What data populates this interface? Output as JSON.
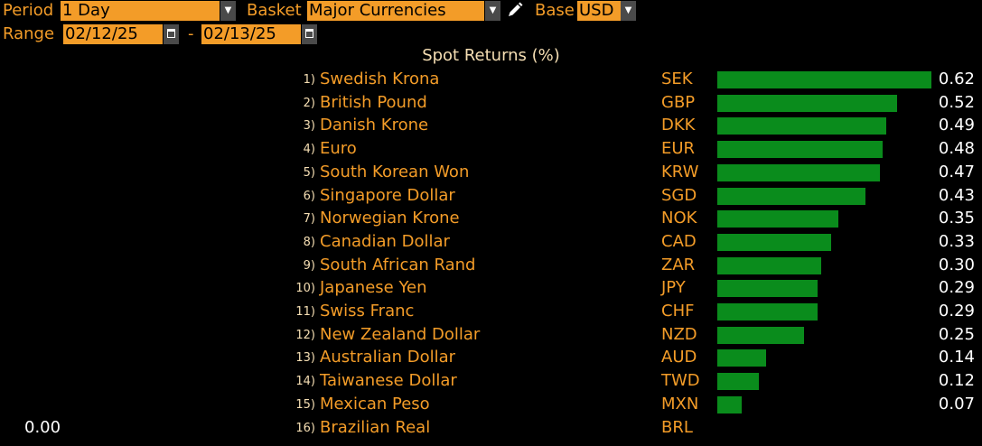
{
  "header": {
    "period_label": "Period",
    "period_value": "1 Day",
    "basket_label": "Basket",
    "basket_value": "Major Currencies",
    "base_label": "Base",
    "base_value": "USD",
    "range_label": "Range",
    "range_start": "02/12/25",
    "range_sep": "-",
    "range_end": "02/13/25"
  },
  "chart_data": {
    "type": "bar",
    "title": "Spot Returns (%)",
    "orientation": "horizontal",
    "bar_color": "#0a8c1c",
    "axis_value_label": "0.00",
    "xlim": [
      0,
      0.62
    ],
    "rows": [
      {
        "rank": "1)",
        "name": "Swedish Krona",
        "code": "SEK",
        "value": 0.62,
        "label": "0.62"
      },
      {
        "rank": "2)",
        "name": "British Pound",
        "code": "GBP",
        "value": 0.52,
        "label": "0.52"
      },
      {
        "rank": "3)",
        "name": "Danish Krone",
        "code": "DKK",
        "value": 0.49,
        "label": "0.49"
      },
      {
        "rank": "4)",
        "name": "Euro",
        "code": "EUR",
        "value": 0.48,
        "label": "0.48"
      },
      {
        "rank": "5)",
        "name": "South Korean Won",
        "code": "KRW",
        "value": 0.47,
        "label": "0.47"
      },
      {
        "rank": "6)",
        "name": "Singapore Dollar",
        "code": "SGD",
        "value": 0.43,
        "label": "0.43"
      },
      {
        "rank": "7)",
        "name": "Norwegian Krone",
        "code": "NOK",
        "value": 0.35,
        "label": "0.35"
      },
      {
        "rank": "8)",
        "name": "Canadian Dollar",
        "code": "CAD",
        "value": 0.33,
        "label": "0.33"
      },
      {
        "rank": "9)",
        "name": "South African Rand",
        "code": "ZAR",
        "value": 0.3,
        "label": "0.30"
      },
      {
        "rank": "10)",
        "name": "Japanese Yen",
        "code": "JPY",
        "value": 0.29,
        "label": "0.29"
      },
      {
        "rank": "11)",
        "name": "Swiss Franc",
        "code": "CHF",
        "value": 0.29,
        "label": "0.29"
      },
      {
        "rank": "12)",
        "name": "New Zealand Dollar",
        "code": "NZD",
        "value": 0.25,
        "label": "0.25"
      },
      {
        "rank": "13)",
        "name": "Australian Dollar",
        "code": "AUD",
        "value": 0.14,
        "label": "0.14"
      },
      {
        "rank": "14)",
        "name": "Taiwanese Dollar",
        "code": "TWD",
        "value": 0.12,
        "label": "0.12"
      },
      {
        "rank": "15)",
        "name": "Mexican Peso",
        "code": "MXN",
        "value": 0.07,
        "label": "0.07"
      },
      {
        "rank": "16)",
        "name": "Brazilian Real",
        "code": "BRL",
        "value": 0.0,
        "label": ""
      }
    ]
  }
}
